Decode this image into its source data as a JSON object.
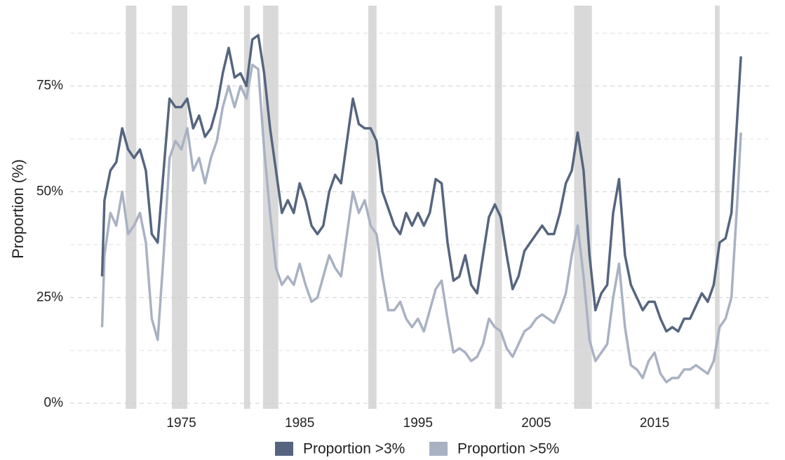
{
  "chart_data": {
    "type": "line",
    "y_axis_label": "Proportion (%)",
    "xlim": [
      1965.6,
      2024.9
    ],
    "xticks": [
      1975,
      1985,
      1995,
      2005,
      2015
    ],
    "ylim": [
      -1.3,
      94
    ],
    "yticks": [
      {
        "value": 0,
        "label": "0%"
      },
      {
        "value": 25,
        "label": "25%"
      },
      {
        "value": 50,
        "label": "50%"
      },
      {
        "value": 75,
        "label": "75%"
      }
    ],
    "minor_yticks": [
      12.5,
      37.5,
      62.5,
      87.5
    ],
    "grid": true,
    "legend": "bottom",
    "shade_color": "#d9d9d9",
    "shaded_periods": [
      [
        1970.3,
        1971.2
      ],
      [
        1974.2,
        1975.5
      ],
      [
        1980.3,
        1980.8
      ],
      [
        1981.9,
        1983.2
      ],
      [
        1990.8,
        1991.5
      ],
      [
        2001.5,
        2002.1
      ],
      [
        2008.2,
        2009.7
      ],
      [
        2020.1,
        2020.5
      ]
    ],
    "x": [
      1968.3,
      1968.5,
      1969,
      1969.5,
      1970,
      1970.5,
      1971,
      1971.5,
      1972,
      1972.5,
      1973,
      1973.5,
      1974,
      1974.5,
      1975,
      1975.5,
      1976,
      1976.5,
      1977,
      1977.5,
      1978,
      1978.5,
      1979,
      1979.5,
      1980,
      1980.5,
      1981,
      1981.5,
      1982,
      1982.5,
      1983,
      1983.5,
      1984,
      1984.5,
      1985,
      1985.5,
      1986,
      1986.5,
      1987,
      1987.5,
      1988,
      1988.5,
      1989,
      1989.5,
      1990,
      1990.5,
      1991,
      1991.5,
      1992,
      1992.5,
      1993,
      1993.5,
      1994,
      1994.5,
      1995,
      1995.5,
      1996,
      1996.5,
      1997,
      1997.5,
      1998,
      1998.5,
      1999,
      1999.5,
      2000,
      2000.5,
      2001,
      2001.5,
      2002,
      2002.5,
      2003,
      2003.5,
      2004,
      2004.5,
      2005,
      2005.5,
      2006,
      2006.5,
      2007,
      2007.5,
      2008,
      2008.5,
      2009,
      2009.5,
      2010,
      2010.5,
      2011,
      2011.5,
      2012,
      2012.5,
      2013,
      2013.5,
      2014,
      2014.5,
      2015,
      2015.5,
      2016,
      2016.5,
      2017,
      2017.5,
      2018,
      2018.5,
      2019,
      2019.5,
      2020,
      2020.5,
      2021,
      2021.5,
      2022,
      2022.3
    ],
    "series": [
      {
        "name": "Proportion >3%",
        "color": "#56657f",
        "values": [
          30,
          48,
          55,
          57,
          65,
          60,
          58,
          60,
          55,
          40,
          38,
          55,
          72,
          70,
          70,
          72,
          65,
          68,
          63,
          65,
          70,
          78,
          84,
          77,
          78,
          75,
          86,
          87,
          78,
          65,
          55,
          45,
          48,
          45,
          52,
          48,
          42,
          40,
          42,
          50,
          54,
          52,
          62,
          72,
          66,
          65,
          65,
          62,
          50,
          46,
          42,
          40,
          45,
          42,
          45,
          42,
          45,
          53,
          52,
          38,
          29,
          30,
          35,
          28,
          26,
          35,
          44,
          47,
          44,
          35,
          27,
          30,
          36,
          38,
          40,
          42,
          40,
          40,
          45,
          52,
          55,
          64,
          55,
          35,
          22,
          26,
          28,
          45,
          53,
          35,
          28,
          25,
          22,
          24,
          24,
          20,
          17,
          18,
          17,
          20,
          20,
          23,
          26,
          24,
          28,
          38,
          39,
          45,
          68,
          82
        ]
      },
      {
        "name": "Proportion >5%",
        "color": "#a9b2c3",
        "values": [
          18,
          35,
          45,
          42,
          50,
          40,
          42,
          45,
          38,
          20,
          15,
          35,
          58,
          62,
          60,
          65,
          55,
          58,
          52,
          58,
          62,
          70,
          75,
          70,
          75,
          72,
          80,
          79,
          60,
          45,
          32,
          28,
          30,
          28,
          33,
          28,
          24,
          25,
          30,
          35,
          32,
          30,
          40,
          50,
          45,
          48,
          42,
          40,
          30,
          22,
          22,
          24,
          20,
          18,
          20,
          17,
          22,
          27,
          29,
          20,
          12,
          13,
          12,
          10,
          11,
          14,
          20,
          18,
          17,
          13,
          11,
          14,
          17,
          18,
          20,
          21,
          20,
          19,
          22,
          26,
          35,
          42,
          30,
          15,
          10,
          12,
          14,
          25,
          33,
          18,
          9,
          8,
          6,
          10,
          12,
          7,
          5,
          6,
          6,
          8,
          8,
          9,
          8,
          7,
          10,
          18,
          20,
          25,
          48,
          64
        ]
      }
    ]
  }
}
